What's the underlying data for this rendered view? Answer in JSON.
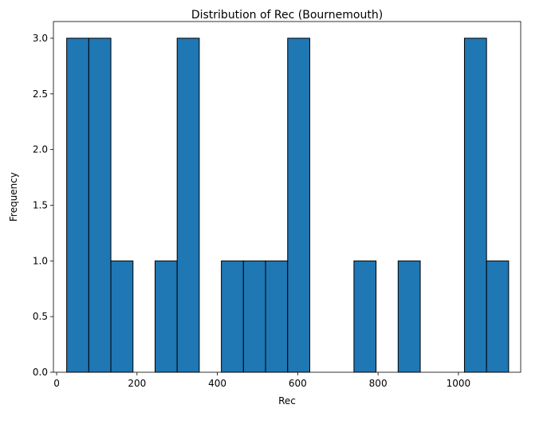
{
  "chart_data": {
    "type": "bar",
    "title": "Distribution of Rec (Bournemouth)",
    "xlabel": "Rec",
    "ylabel": "Frequency",
    "xlim": [
      -8,
      1155
    ],
    "ylim": [
      0,
      3.15
    ],
    "x_ticks": [
      0,
      200,
      400,
      600,
      800,
      1000
    ],
    "x_tick_labels": [
      "0",
      "200",
      "400",
      "600",
      "800",
      "1000"
    ],
    "y_ticks": [
      0,
      0.5,
      1.0,
      1.5,
      2.0,
      2.5,
      3.0
    ],
    "y_tick_labels": [
      "0.0",
      "0.5",
      "1.0",
      "1.5",
      "2.0",
      "2.5",
      "3.0"
    ],
    "bin_edges": [
      25,
      80,
      135,
      190,
      245,
      300,
      355,
      410,
      465,
      520,
      575,
      630,
      685,
      740,
      795,
      850,
      905,
      960,
      1015,
      1070,
      1125
    ],
    "counts": [
      3,
      3,
      1,
      0,
      1,
      3,
      0,
      1,
      1,
      1,
      3,
      0,
      0,
      1,
      0,
      1,
      0,
      0,
      3,
      1
    ],
    "bar_color": "#1f77b4",
    "edge_color": "#000000",
    "grid": false,
    "legend": "none"
  }
}
